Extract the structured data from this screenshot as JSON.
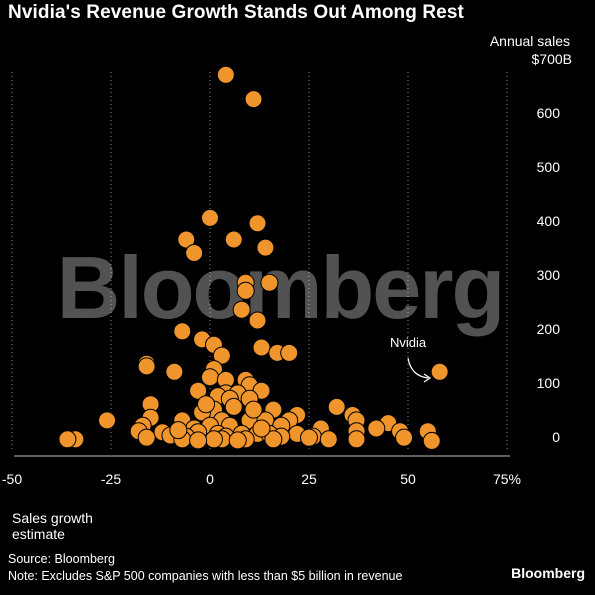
{
  "chart_data": {
    "type": "scatter",
    "title": "Nvidia's Revenue Growth Stands Out Among Rest",
    "ylabel": [
      "Annual sales",
      "$700B"
    ],
    "xlabel": [
      "Sales growth",
      "estimate"
    ],
    "x_ticks": [
      "-50",
      "-25",
      "0",
      "25",
      "50",
      "75%"
    ],
    "x_tick_values": [
      -50,
      -25,
      0,
      25,
      50,
      75
    ],
    "y_ticks": [
      "600",
      "500",
      "400",
      "300",
      "200",
      "100",
      "0"
    ],
    "y_tick_values": [
      600,
      500,
      400,
      300,
      200,
      100,
      0
    ],
    "xlim": [
      -50,
      75
    ],
    "ylim": [
      0,
      700
    ],
    "grid": "vertical dotted",
    "watermark": "Bloomberg",
    "marker_color": "#F0952B",
    "annotation": {
      "label": "Nvidia",
      "x": 58,
      "y": 130
    },
    "points": [
      [
        4,
        680
      ],
      [
        11,
        635
      ],
      [
        0,
        415
      ],
      [
        12,
        405
      ],
      [
        6,
        375
      ],
      [
        -6,
        375
      ],
      [
        14,
        360
      ],
      [
        -4,
        350
      ],
      [
        9,
        295
      ],
      [
        15,
        295
      ],
      [
        9,
        280
      ],
      [
        8,
        245
      ],
      [
        12,
        225
      ],
      [
        -7,
        205
      ],
      [
        -2,
        190
      ],
      [
        1,
        180
      ],
      [
        13,
        175
      ],
      [
        17,
        165
      ],
      [
        20,
        165
      ],
      [
        3,
        160
      ],
      [
        -16,
        145
      ],
      [
        -16,
        140
      ],
      [
        1,
        135
      ],
      [
        -9,
        130
      ],
      [
        0,
        120
      ],
      [
        4,
        115
      ],
      [
        9,
        115
      ],
      [
        10,
        105
      ],
      [
        -3,
        95
      ],
      [
        13,
        95
      ],
      [
        4,
        90
      ],
      [
        7,
        90
      ],
      [
        2,
        85
      ],
      [
        5,
        80
      ],
      [
        10,
        80
      ],
      [
        -15,
        70
      ],
      [
        16,
        60
      ],
      [
        32,
        65
      ],
      [
        1,
        60
      ],
      [
        -2,
        55
      ],
      [
        22,
        50
      ],
      [
        36,
        50
      ],
      [
        -15,
        45
      ],
      [
        -26,
        40
      ],
      [
        -7,
        40
      ],
      [
        3,
        40
      ],
      [
        10,
        40
      ],
      [
        14,
        40
      ],
      [
        20,
        40
      ],
      [
        37,
        40
      ],
      [
        45,
        35
      ],
      [
        -17,
        30
      ],
      [
        0,
        30
      ],
      [
        5,
        30
      ],
      [
        18,
        30
      ],
      [
        28,
        25
      ],
      [
        -4,
        25
      ],
      [
        42,
        25
      ],
      [
        48,
        20
      ],
      [
        55,
        20
      ],
      [
        -18,
        20
      ],
      [
        -12,
        18
      ],
      [
        -3,
        18
      ],
      [
        2,
        15
      ],
      [
        8,
        15
      ],
      [
        12,
        15
      ],
      [
        15,
        15
      ],
      [
        22,
        15
      ],
      [
        37,
        20
      ],
      [
        -10,
        12
      ],
      [
        -6,
        10
      ],
      [
        4,
        10
      ],
      [
        18,
        10
      ],
      [
        26,
        10
      ],
      [
        -16,
        8
      ],
      [
        -7,
        5
      ],
      [
        3,
        5
      ],
      [
        9,
        5
      ],
      [
        16,
        5
      ],
      [
        30,
        5
      ],
      [
        37,
        5
      ],
      [
        49,
        8
      ],
      [
        -34,
        5
      ],
      [
        -36,
        5
      ],
      [
        1,
        5
      ],
      [
        7,
        3
      ],
      [
        -3,
        3
      ],
      [
        56,
        2
      ],
      [
        -1,
        70
      ],
      [
        6,
        65
      ],
      [
        11,
        60
      ],
      [
        -8,
        22
      ],
      [
        13,
        25
      ],
      [
        25,
        8
      ]
    ]
  },
  "footer": {
    "source": "Source: Bloomberg",
    "note": "Note: Excludes S&P 500 companies with less than $5 billion in revenue",
    "brand": "Bloomberg"
  }
}
